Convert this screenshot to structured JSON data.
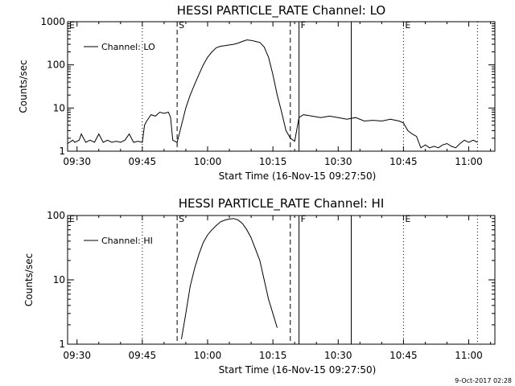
{
  "chart_data": [
    {
      "type": "line",
      "title": "HESSI PARTICLE_RATE Channel: LO",
      "xlabel": "Start Time (16-Nov-15 09:27:50)",
      "ylabel": "Counts/sec",
      "yscale": "log",
      "xlim": [
        "09:27:50",
        "11:06:00"
      ],
      "ylim": [
        1,
        1000
      ],
      "x_ticks": [
        "09:30",
        "09:45",
        "10:00",
        "10:15",
        "10:30",
        "10:45",
        "11:00"
      ],
      "y_ticks": [
        "1",
        "10",
        "100",
        "1000"
      ],
      "legend": {
        "label": "Channel: LO",
        "position": "top-left"
      },
      "markers": [
        {
          "label": "E",
          "time": "09:27:50",
          "style": "dotted"
        },
        {
          "label": "",
          "time": "09:45:00",
          "style": "dotted"
        },
        {
          "label": "S",
          "time": "09:53:00",
          "style": "dashed"
        },
        {
          "label": "",
          "time": "10:19:00",
          "style": "dashed"
        },
        {
          "label": "F",
          "time": "10:21:00",
          "style": "solid"
        },
        {
          "label": "",
          "time": "10:33:00",
          "style": "solid"
        },
        {
          "label": "E",
          "time": "10:45:00",
          "style": "dotted"
        },
        {
          "label": "",
          "time": "11:02:00",
          "style": "dotted"
        }
      ],
      "series": [
        {
          "name": "Channel: LO",
          "x": [
            "09:27:50",
            "09:29:00",
            "09:29:30",
            "09:30:30",
            "09:31:00",
            "09:32:00",
            "09:33:00",
            "09:34:00",
            "09:35:00",
            "09:36:00",
            "09:37:00",
            "09:38:00",
            "09:39:00",
            "09:40:00",
            "09:41:00",
            "09:42:00",
            "09:43:00",
            "09:44:00",
            "09:45:00",
            "09:45:30",
            "09:46:00",
            "09:47:00",
            "09:48:00",
            "09:49:00",
            "09:50:00",
            "09:51:00",
            "09:51:30",
            "09:52:00",
            "09:53:00",
            "09:53:30",
            "09:54:00",
            "09:55:00",
            "09:56:00",
            "09:57:00",
            "09:58:00",
            "09:59:00",
            "10:00:00",
            "10:01:00",
            "10:02:00",
            "10:03:00",
            "10:04:00",
            "10:05:00",
            "10:06:00",
            "10:07:00",
            "10:08:00",
            "10:09:00",
            "10:10:00",
            "10:11:00",
            "10:12:00",
            "10:13:00",
            "10:14:00",
            "10:15:00",
            "10:16:00",
            "10:17:00",
            "10:18:00",
            "10:19:00",
            "10:20:00",
            "10:21:00",
            "10:22:00",
            "10:24:00",
            "10:26:00",
            "10:28:00",
            "10:30:00",
            "10:32:00",
            "10:34:00",
            "10:36:00",
            "10:38:00",
            "10:40:00",
            "10:42:00",
            "10:44:00",
            "10:45:00",
            "10:46:00",
            "10:47:00",
            "10:48:00",
            "10:49:00",
            "10:50:00",
            "10:51:00",
            "10:52:00",
            "10:53:00",
            "10:54:00",
            "10:55:00",
            "10:56:00",
            "10:57:00",
            "10:58:00",
            "10:59:00",
            "11:00:00",
            "11:01:00",
            "11:02:00"
          ],
          "y": [
            1.5,
            1.8,
            1.6,
            1.8,
            2.5,
            1.6,
            1.8,
            1.6,
            2.5,
            1.6,
            1.8,
            1.6,
            1.7,
            1.6,
            1.8,
            2.5,
            1.6,
            1.7,
            1.6,
            4,
            5,
            7,
            6.5,
            8,
            7.5,
            8,
            6,
            1.8,
            1.6,
            2.5,
            4,
            10,
            20,
            35,
            60,
            100,
            150,
            200,
            250,
            270,
            280,
            290,
            300,
            320,
            350,
            380,
            370,
            350,
            330,
            260,
            150,
            60,
            20,
            8,
            3,
            2,
            1.7,
            6,
            7,
            6.5,
            6,
            6.5,
            6,
            5.5,
            6,
            5,
            5.2,
            5,
            5.5,
            5,
            4.5,
            3,
            2.5,
            2.2,
            1.2,
            1.4,
            1.2,
            1.3,
            1.2,
            1.4,
            1.5,
            1.3,
            1.2,
            1.5,
            1.8,
            1.6,
            1.8,
            1.6
          ]
        }
      ]
    },
    {
      "type": "line",
      "title": "HESSI PARTICLE_RATE Channel: HI",
      "xlabel": "Start Time (16-Nov-15 09:27:50)",
      "ylabel": "Counts/sec",
      "yscale": "log",
      "xlim": [
        "09:27:50",
        "11:06:00"
      ],
      "ylim": [
        1,
        100
      ],
      "x_ticks": [
        "09:30",
        "09:45",
        "10:00",
        "10:15",
        "10:30",
        "10:45",
        "11:00"
      ],
      "y_ticks": [
        "1",
        "10",
        "100"
      ],
      "legend": {
        "label": "Channel: HI",
        "position": "top-left"
      },
      "markers": [
        {
          "label": "E",
          "time": "09:27:50",
          "style": "dotted"
        },
        {
          "label": "",
          "time": "09:45:00",
          "style": "dotted"
        },
        {
          "label": "S",
          "time": "09:53:00",
          "style": "dashed"
        },
        {
          "label": "",
          "time": "10:19:00",
          "style": "dashed"
        },
        {
          "label": "F",
          "time": "10:21:00",
          "style": "solid"
        },
        {
          "label": "",
          "time": "10:33:00",
          "style": "solid"
        },
        {
          "label": "E",
          "time": "10:45:00",
          "style": "dotted"
        },
        {
          "label": "",
          "time": "11:02:00",
          "style": "dotted"
        }
      ],
      "series": [
        {
          "name": "Channel: HI",
          "x": [
            "09:54:00",
            "09:55:00",
            "09:56:00",
            "09:57:00",
            "09:58:00",
            "09:59:00",
            "10:00:00",
            "10:01:00",
            "10:02:00",
            "10:03:00",
            "10:04:00",
            "10:05:00",
            "10:06:00",
            "10:07:00",
            "10:08:00",
            "10:09:00",
            "10:10:00",
            "10:11:00",
            "10:12:00",
            "10:13:00",
            "10:14:00",
            "10:15:00",
            "10:16:00"
          ],
          "y": [
            1.2,
            3,
            8,
            15,
            25,
            38,
            50,
            60,
            70,
            80,
            85,
            88,
            90,
            85,
            75,
            60,
            45,
            30,
            20,
            10,
            5,
            3,
            1.8
          ]
        }
      ]
    }
  ],
  "footer": {
    "timestamp": "9-Oct-2017 02:28"
  }
}
